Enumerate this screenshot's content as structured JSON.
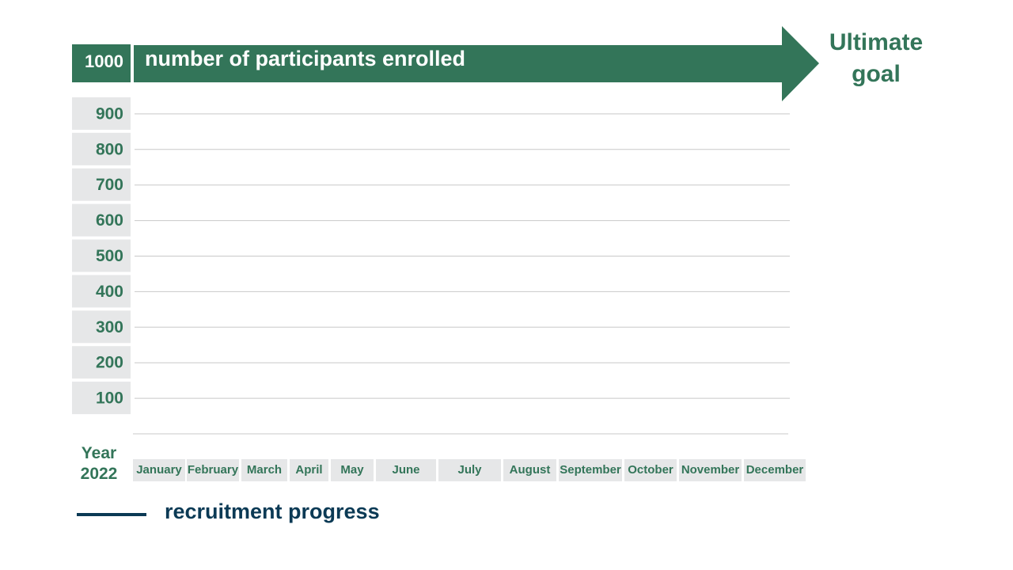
{
  "chart_data": {
    "type": "line",
    "ylabel": "number of participants enrolled",
    "annotation": "Ultimate goal",
    "xlabel": "Year 2022",
    "categories": [
      "January",
      "February",
      "March",
      "April",
      "May",
      "June",
      "July",
      "August",
      "September",
      "October",
      "November",
      "December"
    ],
    "series": [
      {
        "name": "recruitment progress",
        "color": "#0b3a55",
        "values": [
          null,
          null,
          null,
          null,
          null,
          null,
          null,
          null,
          null,
          null,
          null,
          null
        ]
      }
    ],
    "ylim": [
      0,
      1000
    ],
    "yticks": [
      100,
      200,
      300,
      400,
      500,
      600,
      700,
      800,
      900,
      1000
    ],
    "grid": true,
    "accent_color": "#337559"
  }
}
